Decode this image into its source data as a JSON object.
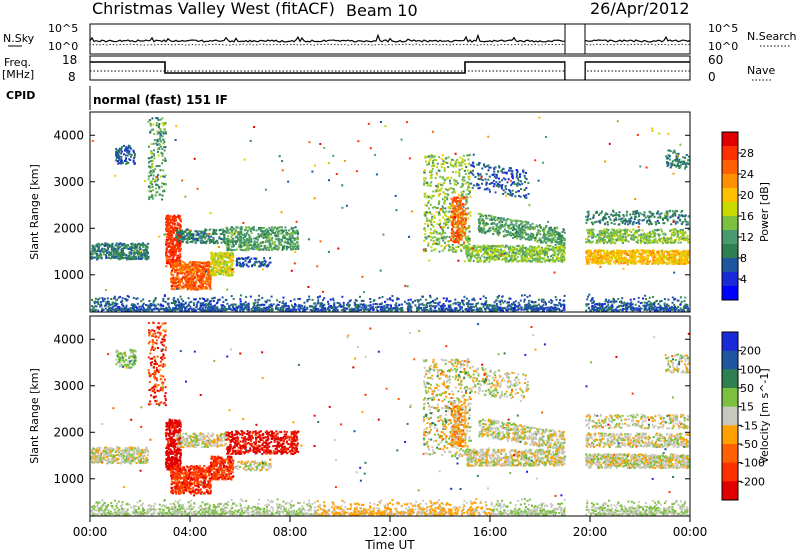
{
  "header": {
    "station": "Christmas Valley West (fitACF)",
    "beam": "Beam 10",
    "date": "26/Apr/2012"
  },
  "top_strips": {
    "nsky_label": "N.Sky",
    "nsearch_label": "N.Search",
    "noise_ticks": [
      "10^5",
      "10^0"
    ],
    "freq_label": "Freq.",
    "freq_unit": "[MHz]",
    "freq_ticks": [
      "18",
      "8"
    ],
    "nave_label": "Nave",
    "nave_ticks": [
      "60",
      "0"
    ],
    "cpid_label": "CPID",
    "cpid_value": "normal (fast) 151 IF"
  },
  "chart_data": [
    {
      "type": "heatmap",
      "quantity": "Power",
      "colorbar_label": "Power [dB]",
      "colorbar_ticks": [
        28,
        24,
        20,
        16,
        12,
        8,
        4
      ],
      "colorbar_colors": [
        "#e00000",
        "#ff3000",
        "#ff6000",
        "#ff9000",
        "#ffc000",
        "#c8d800",
        "#7cc040",
        "#4a9a70",
        "#2e8050",
        "#1f56a0",
        "#1a2ad8",
        "#0000ff"
      ],
      "ylabel": "Slant Range [km]",
      "ylim": [
        200,
        4500
      ],
      "yticks": [
        1000,
        2000,
        3000,
        4000
      ],
      "xlim_hours": [
        0,
        24
      ],
      "data_gap_hours": [
        19.0,
        19.8
      ]
    },
    {
      "type": "heatmap",
      "quantity": "Velocity",
      "colorbar_label": "Velocity [m s^-1]",
      "colorbar_ticks": [
        200,
        100,
        50,
        15,
        -15,
        -50,
        -100,
        -200
      ],
      "colorbar_colors": [
        "#1a2ad8",
        "#1f56a0",
        "#2e8050",
        "#7cc040",
        "#c8c8c0",
        "#ffa000",
        "#ff6000",
        "#ff3000",
        "#e00000"
      ],
      "ylabel": "Slant Range [km]",
      "ylim": [
        200,
        4500
      ],
      "yticks": [
        1000,
        2000,
        3000,
        4000
      ],
      "xlim_hours": [
        0,
        24
      ],
      "data_gap_hours": [
        19.0,
        19.8
      ]
    }
  ],
  "x_axis": {
    "ticks": [
      "00:00",
      "04:00",
      "08:00",
      "12:00",
      "16:00",
      "20:00",
      "00:00"
    ],
    "label": "Time UT"
  },
  "colors": {
    "axis": "#000000",
    "background": "#ffffff"
  }
}
